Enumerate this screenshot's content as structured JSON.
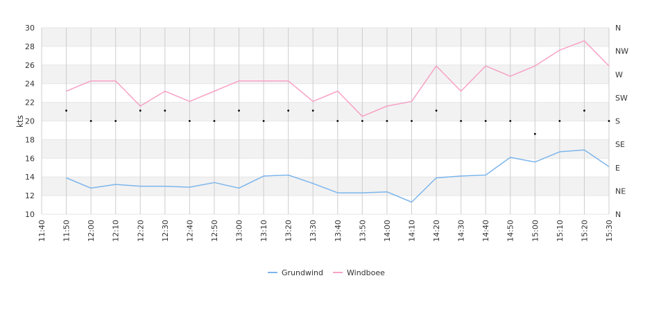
{
  "chart_data": {
    "type": "line",
    "categories": [
      "11:40",
      "11:50",
      "12:00",
      "12:10",
      "12:20",
      "12:30",
      "12:40",
      "12:50",
      "13:00",
      "13:10",
      "13:20",
      "13:30",
      "13:40",
      "13:50",
      "14:00",
      "14:10",
      "14:20",
      "14:30",
      "14:40",
      "14:50",
      "15:00",
      "15:10",
      "15:20",
      "15:30"
    ],
    "x": [
      "11:50",
      "12:00",
      "12:10",
      "12:20",
      "12:30",
      "12:40",
      "12:50",
      "13:00",
      "13:10",
      "13:20",
      "13:30",
      "13:40",
      "13:50",
      "14:00",
      "14:10",
      "14:20",
      "14:30",
      "14:40",
      "14:50",
      "15:00",
      "15:10",
      "15:20",
      "15:30"
    ],
    "series": [
      {
        "name": "Grundwind",
        "color": "#7cb5ec",
        "values": [
          13.9,
          12.8,
          13.2,
          13.0,
          13.0,
          12.9,
          13.4,
          12.8,
          14.1,
          14.2,
          13.3,
          12.3,
          12.3,
          12.4,
          11.3,
          13.9,
          14.1,
          14.2,
          16.1,
          15.6,
          16.7,
          16.9,
          15.1
        ]
      },
      {
        "name": "Windboee",
        "color": "#f7a1c4",
        "values": [
          23.2,
          24.3,
          24.3,
          21.6,
          23.2,
          22.1,
          23.2,
          24.3,
          24.3,
          24.3,
          22.1,
          23.2,
          20.5,
          21.6,
          22.1,
          25.9,
          23.2,
          25.9,
          24.8,
          25.9,
          27.6,
          28.6,
          25.9
        ]
      }
    ],
    "direction": {
      "labels": [
        "N",
        "NE",
        "E",
        "SE",
        "S",
        "SW",
        "W",
        "NW",
        "N"
      ],
      "ylim": [
        0,
        360
      ],
      "values": [
        200,
        180,
        180,
        200,
        200,
        180,
        180,
        200,
        180,
        200,
        200,
        180,
        180,
        180,
        180,
        200,
        180,
        180,
        180,
        155,
        180,
        200,
        180
      ]
    },
    "ylabel": "kts",
    "ylim": [
      10,
      30
    ],
    "yticks": [
      10,
      12,
      14,
      16,
      18,
      20,
      22,
      24,
      26,
      28,
      30
    ],
    "grid": true,
    "legend": "bottom-center"
  }
}
